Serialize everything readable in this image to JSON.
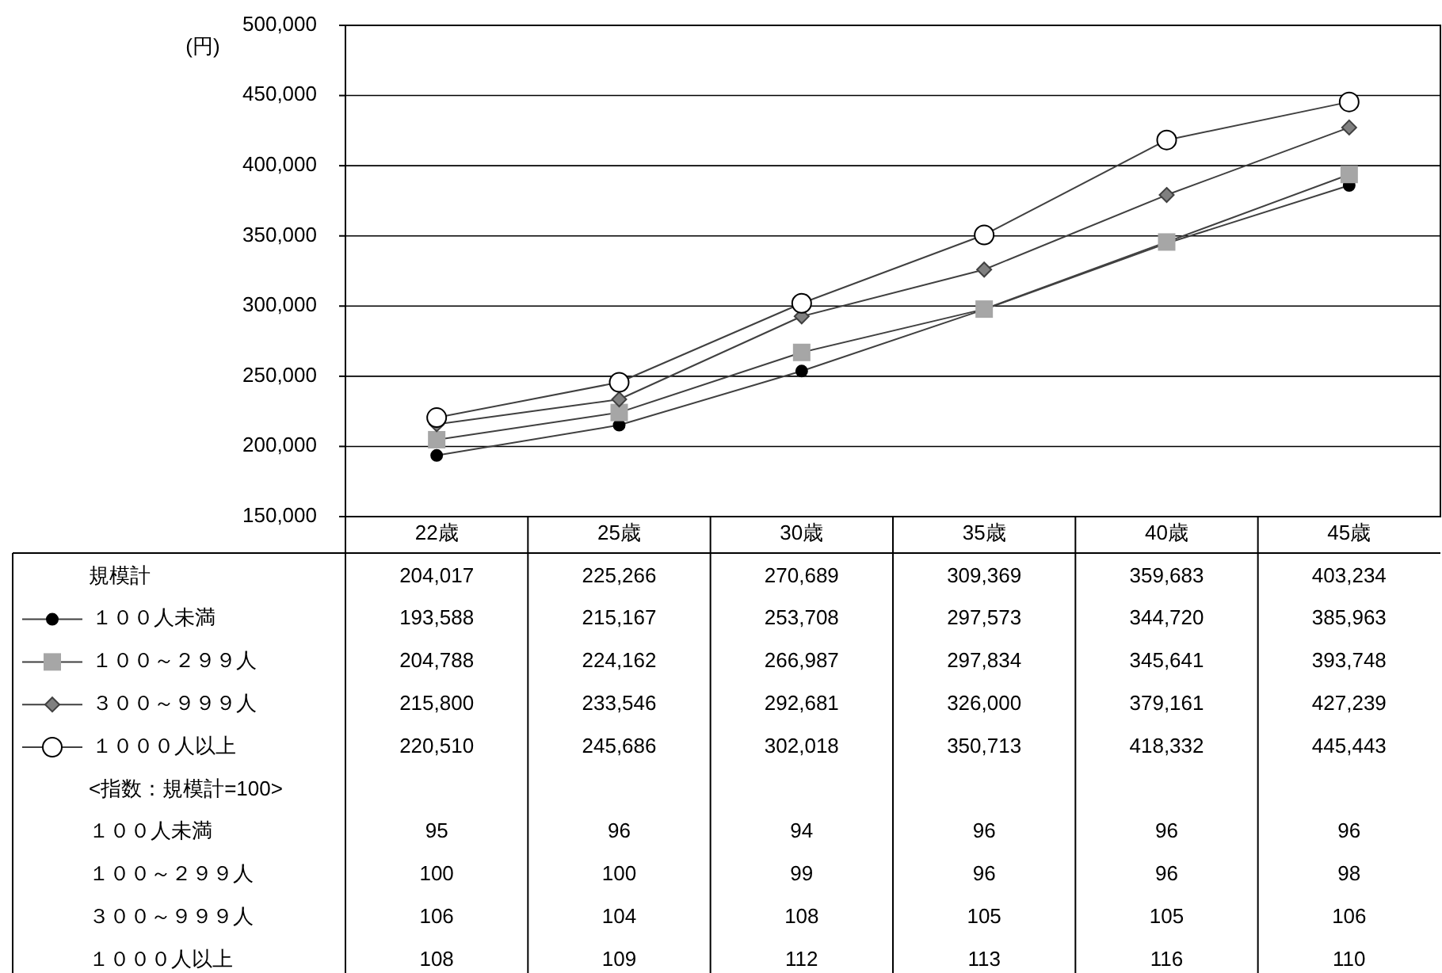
{
  "chart_data": {
    "type": "line",
    "ylabel": "(円)",
    "categories": [
      "22歳",
      "25歳",
      "30歳",
      "35歳",
      "40歳",
      "45歳"
    ],
    "ylim": [
      150000,
      500000
    ],
    "yticks": [
      {
        "value": 150000,
        "label": "150,000"
      },
      {
        "value": 200000,
        "label": "200,000"
      },
      {
        "value": 250000,
        "label": "250,000"
      },
      {
        "value": 300000,
        "label": "300,000"
      },
      {
        "value": 350000,
        "label": "350,000"
      },
      {
        "value": 400000,
        "label": "400,000"
      },
      {
        "value": 450000,
        "label": "450,000"
      },
      {
        "value": 500000,
        "label": "500,000"
      }
    ],
    "grid": "y",
    "legend": "bottom",
    "line_style": "solid",
    "series": [
      {
        "name": "１００人未満",
        "color": "#000000",
        "marker": "circle",
        "values": [
          193588,
          215167,
          253708,
          297573,
          344720,
          385963
        ],
        "value_labels": [
          "193,588",
          "215,167",
          "253,708",
          "297,573",
          "344,720",
          "385,963"
        ]
      },
      {
        "name": "１００～２９９人",
        "color": "#a6a6a6",
        "marker": "square",
        "values": [
          204788,
          224162,
          266987,
          297834,
          345641,
          393748
        ],
        "value_labels": [
          "204,788",
          "224,162",
          "266,987",
          "297,834",
          "345,641",
          "393,748"
        ]
      },
      {
        "name": "３００～９９９人",
        "color": "#808080",
        "marker": "diamond",
        "values": [
          215800,
          233546,
          292681,
          326000,
          379161,
          427239
        ],
        "value_labels": [
          "215,800",
          "233,546",
          "292,681",
          "326,000",
          "379,161",
          "427,239"
        ]
      },
      {
        "name": "１０００人以上",
        "color": "#ffffff",
        "marker": "circle",
        "values": [
          220510,
          245686,
          302018,
          350713,
          418332,
          445443
        ],
        "value_labels": [
          "220,510",
          "245,686",
          "302,018",
          "350,713",
          "418,332",
          "445,443"
        ]
      }
    ],
    "annotations": [
      "規模計",
      "204,017",
      "225,266",
      "270,689",
      "309,369",
      "359,683",
      "403,234",
      "<指数：規模計=100>",
      "１００人未満",
      "95",
      "96",
      "94",
      "96",
      "96",
      "96",
      "１００～２９９人",
      "100",
      "100",
      "99",
      "96",
      "96",
      "98",
      "３００～９９９人",
      "106",
      "104",
      "108",
      "105",
      "105",
      "106",
      "１０００人以上",
      "108",
      "109",
      "112",
      "113",
      "116",
      "110"
    ]
  }
}
